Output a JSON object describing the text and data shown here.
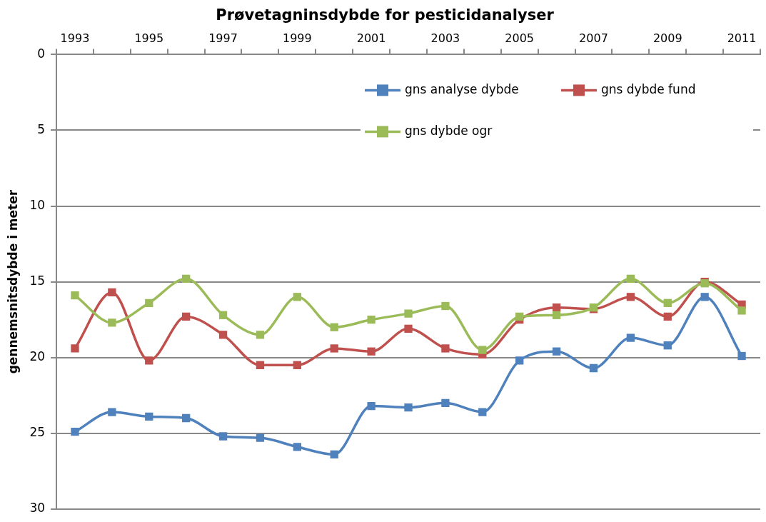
{
  "chart_data": {
    "type": "line",
    "title": "Prøvetagninsdybde for pesticidanalyser",
    "ylabel": "gennemsnitsdybde i meter",
    "categories": [
      "1993",
      null,
      "1995",
      null,
      "1997",
      null,
      "1999",
      null,
      "2001",
      null,
      "2003",
      null,
      "2005",
      null,
      "2007",
      null,
      "2009",
      null,
      "2011"
    ],
    "series": [
      {
        "name": "gns analyse dybde",
        "color": "#4f81bd",
        "values": [
          24.9,
          23.6,
          23.9,
          24.0,
          25.2,
          25.3,
          25.9,
          26.4,
          23.2,
          23.3,
          23.0,
          23.6,
          20.2,
          19.6,
          20.7,
          18.7,
          19.2,
          16.0,
          19.9
        ]
      },
      {
        "name": "gns dybde fund",
        "color": "#c0504d",
        "values": [
          19.4,
          15.7,
          20.2,
          17.3,
          18.5,
          20.5,
          20.5,
          19.4,
          19.6,
          18.1,
          19.4,
          19.8,
          17.5,
          16.7,
          16.8,
          16.0,
          17.3,
          15.0,
          16.5
        ]
      },
      {
        "name": "gns dybde ogr",
        "color": "#9bbb59",
        "values": [
          15.9,
          17.7,
          16.4,
          14.8,
          17.2,
          18.5,
          16.0,
          18.0,
          17.5,
          17.1,
          16.6,
          19.5,
          17.3,
          17.2,
          16.7,
          14.8,
          16.4,
          15.1,
          16.9
        ]
      }
    ],
    "ylim": [
      30,
      0
    ],
    "yticks": [
      0,
      5,
      10,
      15,
      20,
      25,
      30
    ],
    "grid": "y",
    "legend": "top right",
    "marker": "square"
  }
}
